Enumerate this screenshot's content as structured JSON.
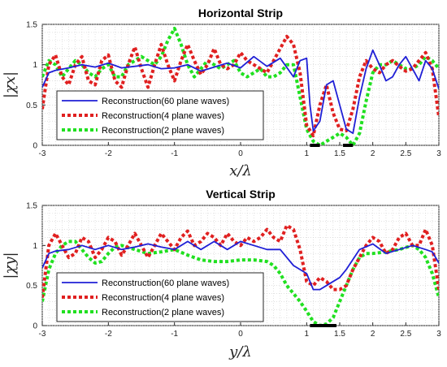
{
  "chart_data": [
    {
      "type": "line",
      "title": "Horizontal Strip",
      "xlabel": "x/λ",
      "ylabel": "|χx|",
      "xlim": [
        -3,
        3
      ],
      "ylim": [
        0,
        1.5
      ],
      "xticks": [
        "-3",
        "-2",
        "-1",
        "0",
        "1",
        "1.5",
        "2",
        "2.5",
        "3"
      ],
      "xtick_values": [
        -3,
        -2,
        -1,
        0,
        1,
        1.5,
        2,
        2.5,
        3
      ],
      "yticks": [
        "0",
        "0.5",
        "1",
        "1.5"
      ],
      "ytick_values": [
        0,
        0.5,
        1,
        1.5
      ],
      "grid": "minor dotted",
      "legend_position": "bottom-left",
      "strip_segments": [
        [
          1.05,
          1.2
        ],
        [
          1.55,
          1.7
        ]
      ],
      "series": [
        {
          "name": "Reconstruction(60 plane waves)",
          "color": "#1f1fd6",
          "style": "solid",
          "x": [
            -3,
            -2.9,
            -2.8,
            -2.6,
            -2.4,
            -2.2,
            -2,
            -1.8,
            -1.6,
            -1.4,
            -1.2,
            -1,
            -0.8,
            -0.6,
            -0.4,
            -0.2,
            0,
            0.2,
            0.4,
            0.6,
            0.8,
            0.9,
            1,
            1.05,
            1.1,
            1.2,
            1.3,
            1.4,
            1.5,
            1.6,
            1.7,
            1.8,
            1.9,
            2,
            2.1,
            2.2,
            2.3,
            2.4,
            2.5,
            2.6,
            2.7,
            2.8,
            2.9,
            3
          ],
          "values": [
            0.72,
            0.9,
            0.93,
            0.96,
            1.0,
            0.97,
            1.02,
            0.96,
            0.98,
            1.0,
            0.95,
            0.96,
            1.0,
            0.92,
            0.97,
            1.02,
            0.96,
            1.1,
            0.98,
            1.08,
            0.85,
            1.05,
            1.08,
            0.5,
            0.18,
            0.3,
            0.75,
            0.8,
            0.5,
            0.2,
            0.15,
            0.6,
            0.95,
            1.18,
            1.0,
            0.8,
            0.85,
            1.0,
            1.1,
            0.95,
            0.8,
            1.05,
            0.95,
            0.7
          ]
        },
        {
          "name": "Reconstruction(4 plane waves)",
          "color": "#e02020",
          "style": "dotted",
          "x": [
            -3,
            -2.9,
            -2.8,
            -2.7,
            -2.6,
            -2.5,
            -2.4,
            -2.3,
            -2.2,
            -2.1,
            -2,
            -1.9,
            -1.8,
            -1.7,
            -1.6,
            -1.5,
            -1.4,
            -1.3,
            -1.2,
            -1.1,
            -1,
            -0.9,
            -0.8,
            -0.7,
            -0.6,
            -0.5,
            -0.4,
            -0.3,
            -0.2,
            -0.1,
            0,
            0.1,
            0.2,
            0.3,
            0.4,
            0.5,
            0.6,
            0.7,
            0.8,
            0.9,
            1,
            1.1,
            1.2,
            1.3,
            1.4,
            1.5,
            1.6,
            1.7,
            1.8,
            1.9,
            2,
            2.1,
            2.2,
            2.3,
            2.4,
            2.5,
            2.6,
            2.7,
            2.8,
            2.9,
            3
          ],
          "values": [
            0.45,
            1.0,
            1.12,
            0.85,
            0.75,
            1.0,
            1.1,
            0.8,
            0.75,
            1.05,
            1.12,
            0.8,
            0.72,
            1.0,
            1.22,
            0.95,
            0.72,
            1.0,
            1.25,
            1.0,
            0.8,
            1.05,
            1.25,
            1.05,
            0.88,
            1.0,
            1.2,
            1.0,
            0.95,
            1.0,
            1.15,
            1.05,
            1.0,
            0.95,
            0.9,
            1.05,
            1.2,
            1.35,
            1.25,
            0.9,
            0.25,
            0.12,
            0.5,
            0.75,
            0.4,
            0.2,
            0.18,
            0.45,
            0.85,
            1.05,
            0.95,
            0.9,
            1.0,
            1.05,
            0.98,
            0.92,
            0.95,
            1.05,
            1.15,
            0.95,
            0.35
          ]
        },
        {
          "name": "Reconstruction(2 plane waves)",
          "color": "#20e020",
          "style": "dotted",
          "x": [
            -3,
            -2.9,
            -2.8,
            -2.7,
            -2.6,
            -2.5,
            -2.4,
            -2.3,
            -2.2,
            -2.1,
            -2,
            -1.9,
            -1.8,
            -1.7,
            -1.6,
            -1.5,
            -1.4,
            -1.3,
            -1.2,
            -1.1,
            -1,
            -0.9,
            -0.8,
            -0.7,
            -0.6,
            -0.5,
            -0.4,
            -0.3,
            -0.2,
            -0.1,
            0,
            0.1,
            0.2,
            0.3,
            0.4,
            0.5,
            0.6,
            0.7,
            0.8,
            0.9,
            1,
            1.1,
            1.2,
            1.3,
            1.4,
            1.5,
            1.6,
            1.7,
            1.8,
            1.9,
            2,
            2.1,
            2.2,
            2.3,
            2.4,
            2.5,
            2.6,
            2.7,
            2.8,
            2.9,
            3
          ],
          "values": [
            0.85,
            1.05,
            1.0,
            0.85,
            0.95,
            1.05,
            1.0,
            0.9,
            0.85,
            0.95,
            1.0,
            0.85,
            0.85,
            1.0,
            1.05,
            1.1,
            1.05,
            1.0,
            1.1,
            1.3,
            1.45,
            1.25,
            1.0,
            0.85,
            0.95,
            1.05,
            1.0,
            0.95,
            1.0,
            1.05,
            0.9,
            0.85,
            0.9,
            0.95,
            0.85,
            0.85,
            0.9,
            1.0,
            1.0,
            0.6,
            0.2,
            0.05,
            0.0,
            0.05,
            0.1,
            0.15,
            0.1,
            0.0,
            0.15,
            0.55,
            0.9,
            1.0,
            1.0,
            1.05,
            1.0,
            0.95,
            0.95,
            1.0,
            1.1,
            1.05,
            0.95
          ]
        }
      ]
    },
    {
      "type": "line",
      "title": "Vertical Strip",
      "xlabel": "y/λ",
      "ylabel": "|χy|",
      "xlim": [
        -3,
        3
      ],
      "ylim": [
        0,
        1.5
      ],
      "xticks": [
        "-3",
        "-2",
        "-1",
        "0",
        "1",
        "1.5",
        "2",
        "2.5",
        "3"
      ],
      "xtick_values": [
        -3,
        -2,
        -1,
        0,
        1,
        1.5,
        2,
        2.5,
        3
      ],
      "yticks": [
        "0",
        "0.5",
        "1",
        "1.5"
      ],
      "ytick_values": [
        0,
        0.5,
        1,
        1.5
      ],
      "grid": "minor dotted",
      "legend_position": "bottom-left",
      "strip_segments": [
        [
          1.05,
          1.45
        ]
      ],
      "series": [
        {
          "name": "Reconstruction(60 plane waves)",
          "color": "#1f1fd6",
          "style": "solid",
          "x": [
            -3,
            -2.9,
            -2.8,
            -2.6,
            -2.4,
            -2.2,
            -2,
            -1.8,
            -1.6,
            -1.4,
            -1.2,
            -1,
            -0.8,
            -0.6,
            -0.4,
            -0.2,
            0,
            0.2,
            0.4,
            0.6,
            0.8,
            1,
            1.1,
            1.2,
            1.3,
            1.4,
            1.5,
            1.6,
            1.8,
            2,
            2.2,
            2.4,
            2.6,
            2.8,
            2.9,
            3
          ],
          "values": [
            0.72,
            0.9,
            0.93,
            0.95,
            1.0,
            0.95,
            1.0,
            0.95,
            0.98,
            1.02,
            0.98,
            0.95,
            1.05,
            0.95,
            1.05,
            0.95,
            1.05,
            1.0,
            0.95,
            0.95,
            0.75,
            0.65,
            0.45,
            0.45,
            0.5,
            0.55,
            0.6,
            0.7,
            0.95,
            1.02,
            0.9,
            0.95,
            1.0,
            0.95,
            0.92,
            0.78
          ]
        },
        {
          "name": "Reconstruction(4 plane waves)",
          "color": "#e02020",
          "style": "dotted",
          "x": [
            -3,
            -2.9,
            -2.8,
            -2.7,
            -2.6,
            -2.5,
            -2.4,
            -2.3,
            -2.2,
            -2.1,
            -2,
            -1.9,
            -1.8,
            -1.7,
            -1.6,
            -1.5,
            -1.4,
            -1.3,
            -1.2,
            -1.1,
            -1,
            -0.9,
            -0.8,
            -0.7,
            -0.6,
            -0.5,
            -0.4,
            -0.3,
            -0.2,
            -0.1,
            0,
            0.1,
            0.2,
            0.3,
            0.4,
            0.5,
            0.6,
            0.7,
            0.8,
            0.9,
            1,
            1.1,
            1.2,
            1.3,
            1.4,
            1.5,
            1.6,
            1.7,
            1.8,
            1.9,
            2,
            2.1,
            2.2,
            2.3,
            2.4,
            2.5,
            2.6,
            2.7,
            2.8,
            2.9,
            3
          ],
          "values": [
            0.35,
            1.0,
            1.15,
            1.0,
            0.85,
            0.9,
            1.1,
            1.05,
            0.85,
            0.95,
            1.1,
            1.05,
            0.88,
            1.0,
            1.15,
            1.0,
            0.85,
            1.0,
            1.15,
            1.05,
            0.95,
            1.1,
            1.18,
            1.0,
            1.05,
            1.15,
            1.1,
            1.0,
            1.15,
            1.05,
            1.0,
            1.1,
            1.05,
            1.1,
            1.2,
            1.1,
            1.05,
            1.25,
            1.2,
            0.95,
            0.55,
            0.5,
            0.6,
            0.55,
            0.45,
            0.45,
            0.5,
            0.7,
            0.85,
            1.0,
            1.1,
            1.05,
            0.9,
            0.95,
            1.1,
            1.15,
            1.0,
            1.0,
            1.2,
            1.0,
            0.45
          ]
        },
        {
          "name": "Reconstruction(2 plane waves)",
          "color": "#20e020",
          "style": "dotted",
          "x": [
            -3,
            -2.9,
            -2.8,
            -2.7,
            -2.6,
            -2.5,
            -2.4,
            -2.3,
            -2.2,
            -2.1,
            -2,
            -1.9,
            -1.8,
            -1.6,
            -1.4,
            -1.2,
            -1,
            -0.8,
            -0.6,
            -0.4,
            -0.2,
            0,
            0.2,
            0.4,
            0.5,
            0.6,
            0.7,
            0.8,
            0.9,
            1,
            1.1,
            1.2,
            1.3,
            1.4,
            1.5,
            1.6,
            1.7,
            1.8,
            1.9,
            2,
            2.2,
            2.4,
            2.6,
            2.7,
            2.8,
            2.9,
            3
          ],
          "values": [
            0.3,
            0.7,
            0.9,
            1.0,
            1.05,
            1.05,
            0.95,
            0.85,
            0.78,
            0.8,
            0.9,
            0.98,
            1.0,
            0.95,
            0.9,
            0.92,
            0.95,
            0.88,
            0.82,
            0.8,
            0.8,
            0.82,
            0.82,
            0.8,
            0.75,
            0.65,
            0.5,
            0.4,
            0.3,
            0.18,
            0.05,
            0.0,
            0.02,
            0.1,
            0.3,
            0.5,
            0.7,
            0.85,
            0.9,
            0.9,
            0.92,
            0.95,
            1.0,
            0.95,
            0.85,
            0.65,
            0.35
          ]
        }
      ]
    }
  ]
}
